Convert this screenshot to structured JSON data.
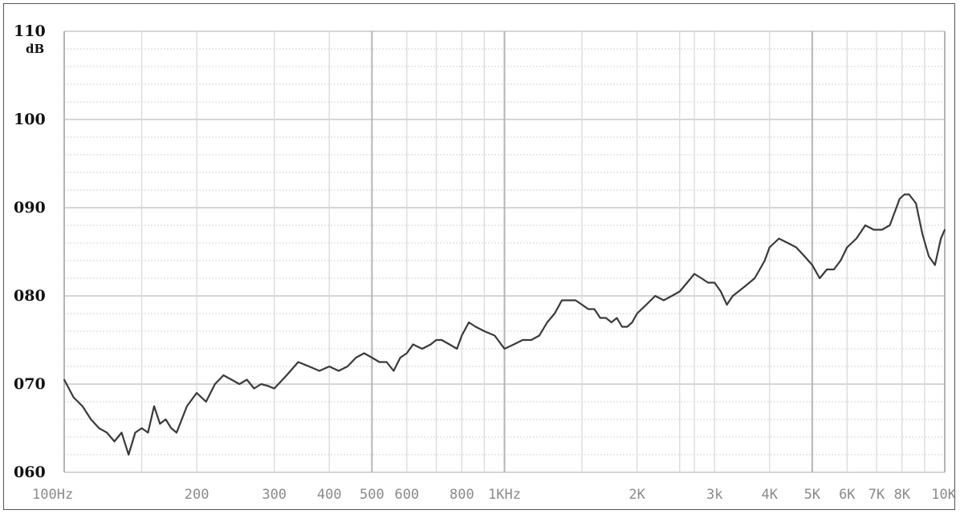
{
  "chart_data": {
    "type": "line",
    "title": "",
    "xlabel": "",
    "ylabel": "dB",
    "x_scale": "log",
    "xlim": [
      100,
      10000
    ],
    "ylim": [
      60,
      110
    ],
    "grid": true,
    "y_ticks": [
      {
        "value": 110,
        "label": "110"
      },
      {
        "value": 100,
        "label": "100"
      },
      {
        "value": 90,
        "label": "090"
      },
      {
        "value": 80,
        "label": "080"
      },
      {
        "value": 70,
        "label": "070"
      },
      {
        "value": 60,
        "label": "060"
      }
    ],
    "x_ticks": [
      {
        "value": 100,
        "label": "100Hz"
      },
      {
        "value": 200,
        "label": "200"
      },
      {
        "value": 300,
        "label": "300"
      },
      {
        "value": 400,
        "label": "400"
      },
      {
        "value": 500,
        "label": "500"
      },
      {
        "value": 600,
        "label": "600"
      },
      {
        "value": 800,
        "label": "800"
      },
      {
        "value": 1000,
        "label": "1KHz"
      },
      {
        "value": 2000,
        "label": "2K"
      },
      {
        "value": 3000,
        "label": "3k"
      },
      {
        "value": 4000,
        "label": "4K"
      },
      {
        "value": 5000,
        "label": "5K"
      },
      {
        "value": 6000,
        "label": "6K"
      },
      {
        "value": 7000,
        "label": "7K"
      },
      {
        "value": 8000,
        "label": "8K"
      },
      {
        "value": 10000,
        "label": "10K"
      }
    ],
    "series": [
      {
        "name": "",
        "x": [
          100,
          105,
          110,
          115,
          120,
          125,
          130,
          135,
          140,
          145,
          150,
          155,
          160,
          165,
          170,
          175,
          180,
          190,
          200,
          210,
          220,
          230,
          240,
          250,
          260,
          270,
          280,
          290,
          300,
          320,
          340,
          360,
          380,
          400,
          420,
          440,
          460,
          480,
          500,
          520,
          540,
          560,
          580,
          600,
          620,
          650,
          680,
          700,
          720,
          750,
          780,
          800,
          830,
          860,
          900,
          950,
          1000,
          1050,
          1100,
          1150,
          1200,
          1250,
          1300,
          1350,
          1400,
          1450,
          1500,
          1550,
          1600,
          1650,
          1700,
          1750,
          1800,
          1850,
          1900,
          1950,
          2000,
          2100,
          2200,
          2300,
          2400,
          2500,
          2600,
          2700,
          2800,
          2900,
          3000,
          3100,
          3200,
          3300,
          3400,
          3500,
          3600,
          3700,
          3800,
          3900,
          4000,
          4200,
          4400,
          4600,
          4800,
          5000,
          5200,
          5400,
          5600,
          5800,
          6000,
          6300,
          6600,
          6900,
          7200,
          7500,
          7700,
          7900,
          8100,
          8300,
          8600,
          8900,
          9200,
          9500,
          9800,
          10000
        ],
        "y": [
          70.5,
          68.5,
          67.5,
          66.0,
          65.0,
          64.5,
          63.5,
          64.5,
          62.0,
          64.5,
          65.0,
          64.5,
          67.5,
          65.5,
          66.0,
          65.0,
          64.5,
          67.5,
          69.0,
          68.0,
          70.0,
          71.0,
          70.5,
          70.0,
          70.5,
          69.5,
          70.0,
          69.8,
          69.5,
          71.0,
          72.5,
          72.0,
          71.5,
          72.0,
          71.5,
          72.0,
          73.0,
          73.5,
          73.0,
          72.5,
          72.5,
          71.5,
          73.0,
          73.5,
          74.5,
          74.0,
          74.5,
          75.0,
          75.0,
          74.5,
          74.0,
          75.5,
          77.0,
          76.5,
          76.0,
          75.5,
          74.0,
          74.5,
          75.0,
          75.0,
          75.5,
          77.0,
          78.0,
          79.5,
          79.5,
          79.5,
          79.0,
          78.5,
          78.5,
          77.5,
          77.5,
          77.0,
          77.5,
          76.5,
          76.5,
          77.0,
          78.0,
          79.0,
          80.0,
          79.5,
          80.0,
          80.5,
          81.5,
          82.5,
          82.0,
          81.5,
          81.5,
          80.5,
          79.0,
          80.0,
          80.5,
          81.0,
          81.5,
          82.0,
          83.0,
          84.0,
          85.5,
          86.5,
          86.0,
          85.5,
          84.5,
          83.5,
          82.0,
          83.0,
          83.0,
          84.0,
          85.5,
          86.5,
          88.0,
          87.5,
          87.5,
          88.0,
          89.5,
          91.0,
          91.5,
          91.5,
          90.5,
          87.0,
          84.5,
          83.5,
          86.5,
          87.5
        ]
      }
    ]
  },
  "colors": {
    "background": "#ffffff",
    "grid_major": "#c8c8c8",
    "grid_minor": "#dadada",
    "grid_dotted": "#d4d4d4",
    "line": "#3a3a3a",
    "axis_text": "#111111",
    "x_tick_text": "#8a8a8a"
  }
}
